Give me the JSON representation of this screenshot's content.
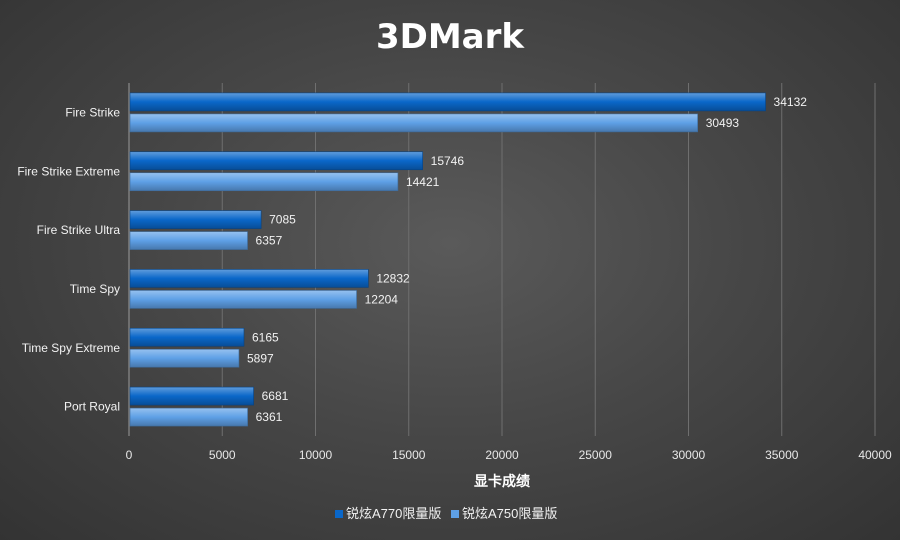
{
  "chart_data": {
    "type": "bar",
    "orientation": "horizontal",
    "title": "3DMark",
    "xlabel": "显卡成绩",
    "ylabel": "",
    "xlim": [
      0,
      40000
    ],
    "x_ticks": [
      0,
      5000,
      10000,
      15000,
      20000,
      25000,
      30000,
      35000,
      40000
    ],
    "categories": [
      "Fire Strike",
      "Fire Strike Extreme",
      "Fire Strike Ultra",
      "Time Spy",
      "Time Spy Extreme",
      "Port Royal"
    ],
    "series": [
      {
        "name": "锐炫A770限量版",
        "color": "#0a67c9",
        "values": [
          34132,
          15746,
          7085,
          12832,
          6165,
          6681
        ]
      },
      {
        "name": "锐炫A750限量版",
        "color": "#5ea0e6",
        "values": [
          30493,
          14421,
          6357,
          12204,
          5897,
          6361
        ]
      }
    ],
    "grid": true,
    "legend": "bottom",
    "data_labels": true
  }
}
